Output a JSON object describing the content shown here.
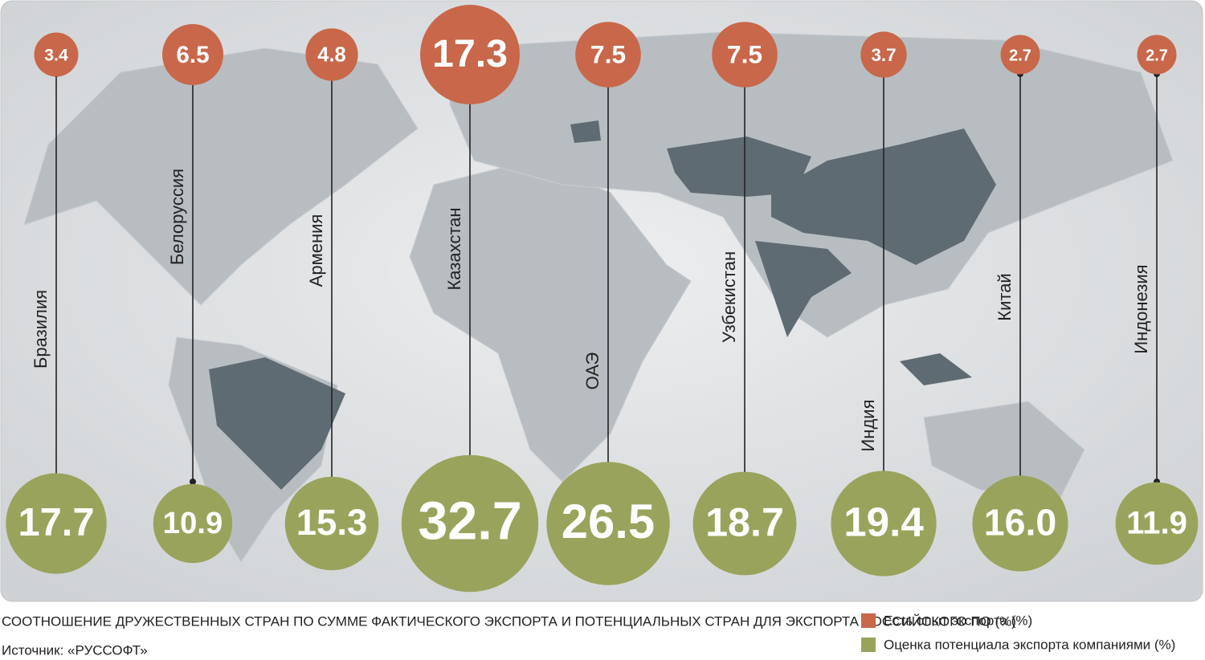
{
  "chart_data": {
    "type": "bubble-map",
    "title": "СООТНОШЕНИЕ ДРУЖЕСТВЕННЫХ СТРАН ПО СУММЕ ФАКТИЧЕСКОГО ЭКСПОРТА И ПОТЕНЦИАЛЬНЫХ СТРАН ДЛЯ ЭКСПОРТА РОССИЙСКОГО ПО (%)",
    "source": "Источник:  «РУССОФТ»",
    "categories": [
      "Бразилия",
      "Белоруссия",
      "Армения",
      "Казахстан",
      "ОАЭ",
      "Узбекистан",
      "Индия",
      "Китай",
      "Индонезия"
    ],
    "series": [
      {
        "name": "Есть опыт экспорта (%)",
        "color": "#c8674a",
        "values": [
          3.4,
          6.5,
          4.8,
          17.3,
          7.5,
          7.5,
          3.7,
          2.7,
          2.7
        ]
      },
      {
        "name": "Оценка потенциала экспорта компаниями (%)",
        "color": "#9aa35c",
        "values": [
          17.7,
          10.9,
          15.3,
          32.7,
          26.5,
          18.7,
          19.4,
          16,
          11.9
        ],
        "value_labels": [
          "17.7",
          "10.9",
          "15.3",
          "32.7",
          "26.5",
          "18.7",
          "19.4",
          "16.0",
          "11.9"
        ]
      }
    ]
  }
}
